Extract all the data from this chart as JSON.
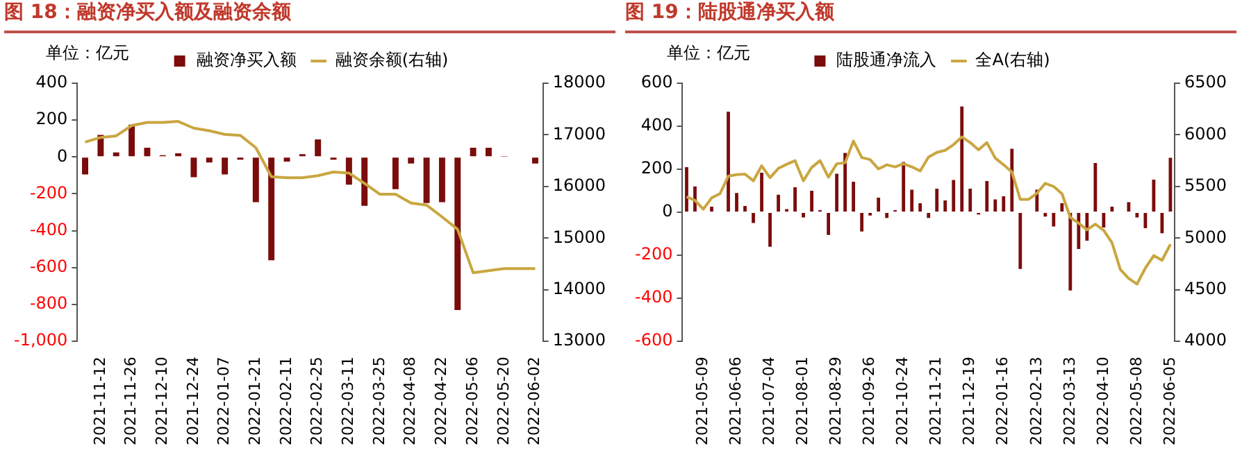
{
  "chart_data": [
    {
      "type": "bar",
      "title": "图 18：融资净买入额及融资余额",
      "annotations": [
        "单位：亿元"
      ],
      "legend": "top",
      "categories": [
        null,
        "2021-11-12",
        null,
        "2021-11-26",
        null,
        "2021-12-10",
        null,
        "2021-12-24",
        null,
        "2022-01-07",
        null,
        "2022-01-21",
        null,
        "2022-02-11",
        null,
        "2022-02-25",
        null,
        "2022-03-11",
        null,
        "2022-03-25",
        null,
        "2022-04-08",
        null,
        "2022-04-22",
        null,
        "2022-05-06",
        null,
        "2022-05-20",
        null,
        "2022-06-02"
      ],
      "series": [
        {
          "name": "融资净买入额",
          "color": "#7b0c0c",
          "values": [
            -95,
            120,
            25,
            175,
            50,
            10,
            20,
            -110,
            -30,
            -95,
            -15,
            -245,
            -560,
            -25,
            15,
            95,
            -15,
            -150,
            -265,
            null,
            -175,
            -35,
            -250,
            -245,
            -830,
            50,
            50,
            2,
            0,
            -35
          ]
        },
        {
          "name": "融资余额(右轴)",
          "type": "line",
          "axis": "y2",
          "color": "#c9a640",
          "values": [
            16860,
            16950,
            16980,
            17180,
            17240,
            17240,
            17260,
            17130,
            17080,
            17010,
            16990,
            16750,
            16190,
            16170,
            16170,
            16210,
            16280,
            16260,
            16060,
            15850,
            15850,
            15680,
            15640,
            15410,
            15170,
            14330,
            14370,
            14410,
            14410,
            14410
          ]
        }
      ],
      "ylim": [
        -1000,
        400
      ],
      "yticks": [
        {
          "value": -1000,
          "label": "-1,000"
        },
        -800,
        -600,
        -400,
        -200,
        0,
        200,
        400
      ],
      "y2lim": [
        13000,
        18000
      ],
      "y2ticks": [
        13000,
        14000,
        15000,
        16000,
        17000,
        18000
      ]
    },
    {
      "type": "bar",
      "title": "图 19：陆股通净买入额",
      "annotations": [
        "单位：亿元"
      ],
      "legend": "top",
      "categories": [
        null,
        null,
        "2021-05-09",
        null,
        null,
        null,
        "2021-06-06",
        null,
        null,
        null,
        "2021-07-04",
        null,
        null,
        null,
        "2021-08-01",
        null,
        null,
        null,
        "2021-08-29",
        null,
        null,
        null,
        "2021-09-26",
        null,
        null,
        null,
        "2021-10-24",
        null,
        null,
        null,
        "2021-11-21",
        null,
        null,
        null,
        "2021-12-19",
        null,
        null,
        null,
        "2022-01-16",
        null,
        null,
        null,
        "2022-02-13",
        null,
        null,
        null,
        "2022-03-13",
        null,
        null,
        null,
        "2022-04-10",
        null,
        null,
        null,
        "2022-05-08",
        null,
        null,
        null,
        "2022-06-05"
      ],
      "series": [
        {
          "name": "陆股通净流入",
          "color": "#7b0c0c",
          "values": [
            210,
            120,
            0,
            26,
            0,
            468,
            90,
            29,
            -50,
            184,
            -160,
            82,
            15,
            116,
            -24,
            100,
            10,
            -105,
            179,
            276,
            142,
            -89,
            -15,
            68,
            -26,
            10,
            234,
            105,
            42,
            -26,
            110,
            55,
            150,
            492,
            110,
            -10,
            145,
            60,
            74,
            295,
            -263,
            0,
            105,
            -20,
            -66,
            42,
            -363,
            -171,
            -132,
            229,
            -71,
            26,
            0,
            47,
            -24,
            -74,
            152,
            -97,
            253
          ]
        },
        {
          "name": "全A(右轴)",
          "type": "line",
          "axis": "y2",
          "color": "#c9a640",
          "values": [
            5400,
            5365,
            5280,
            5390,
            5430,
            5600,
            5615,
            5620,
            5555,
            5700,
            5585,
            5675,
            5715,
            5750,
            5555,
            5685,
            5750,
            5590,
            5720,
            5730,
            5940,
            5780,
            5760,
            5670,
            5710,
            5690,
            5720,
            5690,
            5650,
            5785,
            5830,
            5850,
            5905,
            5980,
            5925,
            5855,
            5925,
            5775,
            5710,
            5640,
            5375,
            5375,
            5435,
            5530,
            5500,
            5430,
            5200,
            5145,
            5080,
            5135,
            5075,
            4955,
            4695,
            4610,
            4555,
            4710,
            4830,
            4785,
            4940
          ]
        }
      ],
      "ylim": [
        -600,
        600
      ],
      "yticks": [
        -600,
        -400,
        -200,
        0,
        200,
        400,
        600
      ],
      "y2lim": [
        4000,
        6500
      ],
      "y2ticks": [
        4000,
        4500,
        5000,
        5500,
        6000,
        6500
      ]
    }
  ]
}
